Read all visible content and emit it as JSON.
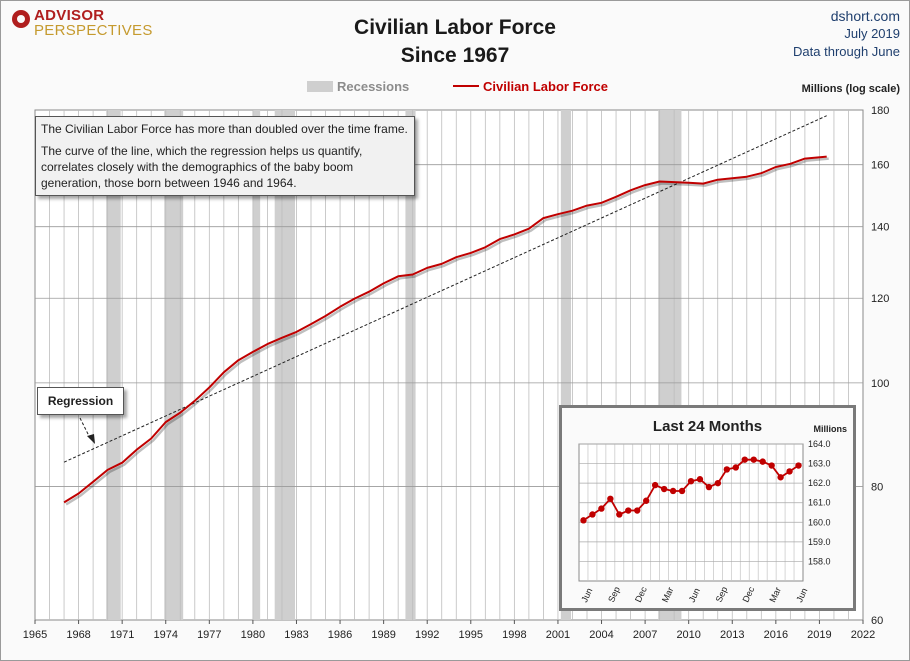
{
  "logo": {
    "line1": "ADVISOR",
    "line2": "PERSPECTIVES"
  },
  "title": {
    "line1": "Civilian Labor Force",
    "line2": "Since 1967"
  },
  "source": {
    "site": "dshort.com",
    "date": "July 2019",
    "note": "Data through June"
  },
  "legend": {
    "recessions": "Recessions",
    "series": "Civilian Labor Force"
  },
  "colors": {
    "series": "#c00000",
    "recession": "#cfcfcf",
    "grid": "#b0b0b0",
    "regression": "#222222"
  },
  "annotation": {
    "p1": "The Civilian Labor Force has more than doubled over the time frame.",
    "p2": "The curve of the line, which the regression helps us quantify, correlates closely with the demographics of the baby boom generation, those born between 1946 and 1964."
  },
  "regression_label": "Regression",
  "chart_data": [
    {
      "type": "line",
      "title": "Civilian Labor Force Since 1967",
      "ylabel": "Millions (log scale)",
      "y_scale": "log",
      "xlim": [
        1965,
        2022
      ],
      "ylim": [
        60,
        180
      ],
      "x_ticks": [
        1965,
        1968,
        1971,
        1974,
        1977,
        1980,
        1983,
        1986,
        1989,
        1992,
        1995,
        1998,
        2001,
        2004,
        2007,
        2010,
        2013,
        2016,
        2019,
        2022
      ],
      "y_ticks": [
        60,
        80,
        100,
        120,
        140,
        160,
        180
      ],
      "grid": true,
      "legend_position": "top-center",
      "recessions": [
        [
          1969.9,
          1970.9
        ],
        [
          1973.9,
          1975.2
        ],
        [
          1980.0,
          1980.5
        ],
        [
          1981.5,
          1982.9
        ],
        [
          1990.5,
          1991.2
        ],
        [
          2001.2,
          2001.9
        ],
        [
          2007.9,
          2009.5
        ]
      ],
      "series": [
        {
          "name": "Civilian Labor Force",
          "x": [
            1967.0,
            1968.0,
            1969.0,
            1970.0,
            1971.0,
            1972.0,
            1973.0,
            1974.0,
            1975.0,
            1976.0,
            1977.0,
            1978.0,
            1979.0,
            1980.0,
            1981.0,
            1982.0,
            1983.0,
            1984.0,
            1985.0,
            1986.0,
            1987.0,
            1988.0,
            1989.0,
            1990.0,
            1991.0,
            1992.0,
            1993.0,
            1994.0,
            1995.0,
            1996.0,
            1997.0,
            1998.0,
            1999.0,
            2000.0,
            2001.0,
            2002.0,
            2003.0,
            2004.0,
            2005.0,
            2006.0,
            2007.0,
            2008.0,
            2009.0,
            2010.0,
            2011.0,
            2012.0,
            2013.0,
            2014.0,
            2015.0,
            2016.0,
            2017.0,
            2018.0,
            2019.5
          ],
          "y": [
            77.3,
            78.8,
            80.8,
            82.9,
            84.2,
            86.6,
            88.7,
            91.9,
            93.8,
            96.2,
            99.0,
            102.3,
            105.0,
            106.9,
            108.7,
            110.2,
            111.6,
            113.5,
            115.5,
            117.8,
            119.9,
            121.7,
            123.9,
            125.8,
            126.3,
            128.1,
            129.2,
            131.1,
            132.3,
            133.9,
            136.3,
            137.7,
            139.4,
            142.6,
            143.8,
            144.9,
            146.5,
            147.4,
            149.3,
            151.4,
            153.1,
            154.3,
            154.1,
            153.9,
            153.6,
            154.9,
            155.4,
            155.9,
            157.1,
            159.2,
            160.3,
            162.1,
            162.8
          ]
        },
        {
          "name": "Regression",
          "x": [
            1967.0,
            2019.5
          ],
          "y": [
            84.3,
            177.8
          ]
        }
      ]
    },
    {
      "type": "line",
      "title": "Last 24 Months",
      "ylabel": "Millions",
      "ylim": [
        157.0,
        164.0
      ],
      "y_ticks": [
        158.0,
        159.0,
        160.0,
        161.0,
        162.0,
        163.0,
        164.0
      ],
      "x_tick_labels": [
        "Jun",
        "Sep",
        "Dec",
        "Mar",
        "Jun",
        "Sep",
        "Dec",
        "Mar",
        "Jun"
      ],
      "series": [
        {
          "name": "Civilian Labor Force",
          "x": [
            "Jun",
            "Jul",
            "Aug",
            "Sep",
            "Oct",
            "Nov",
            "Dec",
            "Jan",
            "Feb",
            "Mar",
            "Apr",
            "May",
            "Jun",
            "Jul",
            "Aug",
            "Sep",
            "Oct",
            "Nov",
            "Dec",
            "Jan",
            "Feb",
            "Mar",
            "Apr",
            "May",
            "Jun"
          ],
          "y": [
            160.1,
            160.4,
            160.7,
            161.2,
            160.4,
            160.6,
            160.6,
            161.1,
            161.9,
            161.7,
            161.6,
            161.6,
            162.1,
            162.2,
            161.8,
            162.0,
            162.7,
            162.8,
            163.2,
            163.2,
            163.1,
            162.9,
            162.3,
            162.6,
            162.9
          ]
        }
      ]
    }
  ]
}
